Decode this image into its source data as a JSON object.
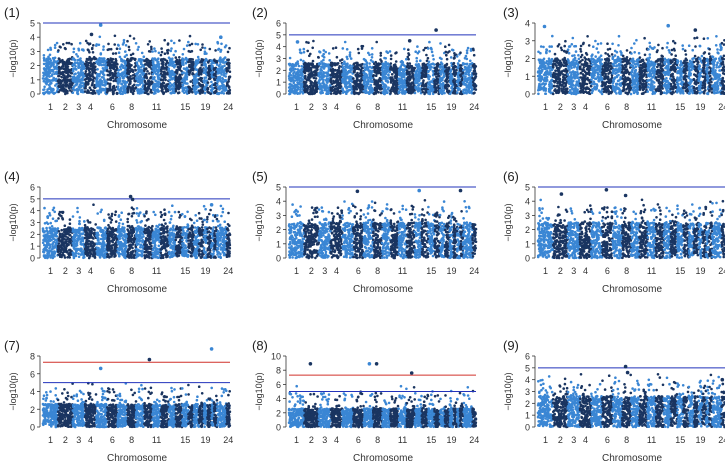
{
  "figure": {
    "description_colors": {
      "light": "#3a86d4",
      "dark": "#1a3561",
      "suggestive_line": "#2233bb",
      "genomewide_line": "#d0302a",
      "axis": "#333333"
    }
  },
  "chart_data": [
    {
      "type": "scatter",
      "panel_label": "(1)",
      "title": "",
      "xlabel": "Chromosome",
      "ylabel": "−log10(p)",
      "ylim": [
        0,
        5
      ],
      "yticks": [
        0,
        1,
        2,
        3,
        4,
        5
      ],
      "xticks": [
        "1",
        "2",
        "3",
        "4",
        "6",
        "8",
        "11",
        "15",
        "19",
        "24"
      ],
      "suggestive_line": 5,
      "genomewide_line": null,
      "peaks": [
        {
          "chromosome": "5",
          "y": 4.85
        },
        {
          "chromosome": "4",
          "y": 4.2
        },
        {
          "chromosome": "23",
          "y": 4.0
        }
      ],
      "seed": 11
    },
    {
      "type": "scatter",
      "panel_label": "(2)",
      "title": "",
      "xlabel": "Chromosome",
      "ylabel": "−log10(p)",
      "ylim": [
        0,
        6
      ],
      "yticks": [
        0,
        1,
        2,
        3,
        4,
        5,
        6
      ],
      "xticks": [
        "1",
        "2",
        "3",
        "4",
        "6",
        "8",
        "11",
        "15",
        "19",
        "24"
      ],
      "suggestive_line": 5,
      "genomewide_line": null,
      "peaks": [
        {
          "chromosome": "16",
          "y": 5.4
        },
        {
          "chromosome": "1",
          "y": 4.4
        },
        {
          "chromosome": "12",
          "y": 4.5
        }
      ],
      "seed": 22
    },
    {
      "type": "scatter",
      "panel_label": "(3)",
      "title": "",
      "xlabel": "Chromosome",
      "ylabel": "−log10(p)",
      "ylim": [
        0,
        4
      ],
      "yticks": [
        0,
        1,
        2,
        3,
        4
      ],
      "xticks": [
        "1",
        "2",
        "3",
        "4",
        "6",
        "8",
        "11",
        "15",
        "19",
        "24"
      ],
      "suggestive_line": null,
      "genomewide_line": null,
      "peaks": [
        {
          "chromosome": "1",
          "y": 3.8
        },
        {
          "chromosome": "13",
          "y": 3.85
        },
        {
          "chromosome": "18",
          "y": 3.6
        }
      ],
      "seed": 33
    },
    {
      "type": "scatter",
      "panel_label": "(4)",
      "title": "",
      "xlabel": "Chromosome",
      "ylabel": "−log10(p)",
      "ylim": [
        0,
        6
      ],
      "yticks": [
        0,
        1,
        2,
        3,
        4,
        5,
        6
      ],
      "xticks": [
        "1",
        "2",
        "3",
        "4",
        "6",
        "8",
        "11",
        "15",
        "19",
        "24"
      ],
      "suggestive_line": 5,
      "genomewide_line": null,
      "peaks": [
        {
          "chromosome": "8",
          "y": 5.2
        },
        {
          "chromosome": "8",
          "y": 4.95
        },
        {
          "chromosome": "21",
          "y": 4.5
        }
      ],
      "seed": 44
    },
    {
      "type": "scatter",
      "panel_label": "(5)",
      "title": "",
      "xlabel": "Chromosome",
      "ylabel": "−log10(p)",
      "ylim": [
        0,
        5
      ],
      "yticks": [
        0,
        1,
        2,
        3,
        4,
        5
      ],
      "xticks": [
        "1",
        "2",
        "3",
        "4",
        "6",
        "8",
        "11",
        "15",
        "19",
        "24"
      ],
      "suggestive_line": 5,
      "genomewide_line": null,
      "peaks": [
        {
          "chromosome": "6",
          "y": 4.7
        },
        {
          "chromosome": "13",
          "y": 4.75
        },
        {
          "chromosome": "22",
          "y": 4.75
        }
      ],
      "seed": 55
    },
    {
      "type": "scatter",
      "panel_label": "(6)",
      "title": "",
      "xlabel": "Chromosome",
      "ylabel": "−log10(p)",
      "ylim": [
        0,
        5
      ],
      "yticks": [
        0,
        1,
        2,
        3,
        4,
        5
      ],
      "xticks": [
        "1",
        "2",
        "3",
        "4",
        "6",
        "8",
        "11",
        "15",
        "19",
        "24"
      ],
      "suggestive_line": 5,
      "genomewide_line": null,
      "peaks": [
        {
          "chromosome": "6",
          "y": 4.8
        },
        {
          "chromosome": "2",
          "y": 4.5
        },
        {
          "chromosome": "8",
          "y": 4.4
        }
      ],
      "seed": 66
    },
    {
      "type": "scatter",
      "panel_label": "(7)",
      "title": "",
      "xlabel": "Chromosome",
      "ylabel": "−log10(p)",
      "ylim": [
        0,
        8
      ],
      "yticks": [
        0,
        2,
        4,
        6,
        8
      ],
      "xticks": [
        "1",
        "2",
        "3",
        "4",
        "6",
        "8",
        "11",
        "15",
        "19",
        "24"
      ],
      "suggestive_line": 5,
      "genomewide_line": 7.3,
      "peaks": [
        {
          "chromosome": "21",
          "y": 8.8
        },
        {
          "chromosome": "10",
          "y": 7.6
        },
        {
          "chromosome": "5",
          "y": 6.6
        }
      ],
      "seed": 77
    },
    {
      "type": "scatter",
      "panel_label": "(8)",
      "title": "",
      "xlabel": "Chromosome",
      "ylabel": "−log10(p)",
      "ylim": [
        0,
        10
      ],
      "yticks": [
        0,
        2,
        4,
        6,
        8,
        10
      ],
      "xticks": [
        "1",
        "2",
        "3",
        "4",
        "6",
        "8",
        "11",
        "15",
        "19",
        "24"
      ],
      "suggestive_line": 5,
      "genomewide_line": 7.3,
      "peaks": [
        {
          "chromosome": "2",
          "y": 8.9
        },
        {
          "chromosome": "7",
          "y": 8.9
        },
        {
          "chromosome": "8",
          "y": 8.9
        },
        {
          "chromosome": "12",
          "y": 7.6
        }
      ],
      "seed": 88
    },
    {
      "type": "scatter",
      "panel_label": "(9)",
      "title": "",
      "xlabel": "Chromosome",
      "ylabel": "−log10(p)",
      "ylim": [
        0,
        6
      ],
      "yticks": [
        0,
        1,
        2,
        3,
        4,
        5,
        6
      ],
      "xticks": [
        "1",
        "2",
        "3",
        "4",
        "6",
        "8",
        "11",
        "15",
        "19",
        "24"
      ],
      "suggestive_line": 5,
      "genomewide_line": null,
      "peaks": [
        {
          "chromosome": "8",
          "y": 5.1
        },
        {
          "chromosome": "8",
          "y": 4.6
        },
        {
          "chromosome": "24",
          "y": 4.0
        }
      ],
      "seed": 99
    }
  ]
}
